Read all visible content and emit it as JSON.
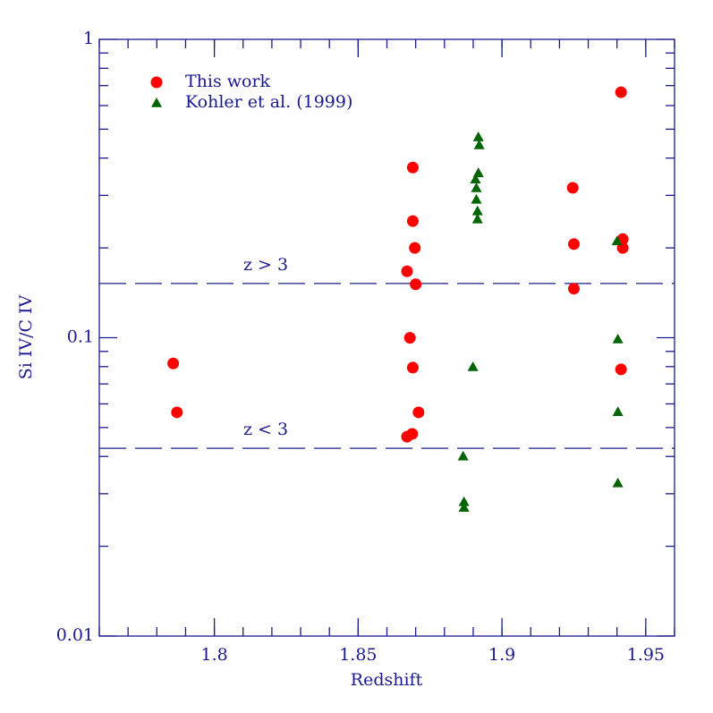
{
  "chart_data": {
    "type": "scatter",
    "xlabel": "Redshift",
    "ylabel": "Si IV/C IV",
    "xlim": [
      1.76,
      1.96
    ],
    "xticks": [
      1.8,
      1.85,
      1.9,
      1.95
    ],
    "ylim": [
      0.01,
      1
    ],
    "yticks": [
      0.01,
      0.1,
      1
    ],
    "yscale": "log",
    "series": [
      {
        "name": "This work",
        "color": "#ff0000",
        "marker": "circle",
        "x": [
          1.7857,
          1.787,
          1.869,
          1.869,
          1.8697,
          1.867,
          1.87,
          1.868,
          1.869,
          1.871,
          1.8688,
          1.867,
          1.9246,
          1.925,
          1.925,
          1.9414,
          1.942,
          1.942,
          1.9414
        ],
        "values": [
          0.082,
          0.0562,
          0.372,
          0.246,
          0.2,
          0.167,
          0.151,
          0.0999,
          0.0794,
          0.0562,
          0.0476,
          0.0466,
          0.318,
          0.206,
          0.146,
          0.665,
          0.214,
          0.2,
          0.0783
        ]
      },
      {
        "name": "Kohler et al. (1999)",
        "color": "#006400",
        "marker": "triangle",
        "x": [
          1.8918,
          1.8921,
          1.8918,
          1.8908,
          1.8911,
          1.8911,
          1.8915,
          1.8915,
          1.8899,
          1.8865,
          1.8868,
          1.8868,
          1.94,
          1.9403,
          1.9403,
          1.9403
        ],
        "values": [
          0.471,
          0.443,
          0.357,
          0.34,
          0.318,
          0.291,
          0.266,
          0.25,
          0.0799,
          0.0401,
          0.0282,
          0.027,
          0.211,
          0.099,
          0.0565,
          0.0326
        ]
      }
    ],
    "annotations": [
      {
        "text": "z > 3",
        "y": 0.152
      },
      {
        "text": "z < 3",
        "y": 0.0426
      }
    ]
  }
}
